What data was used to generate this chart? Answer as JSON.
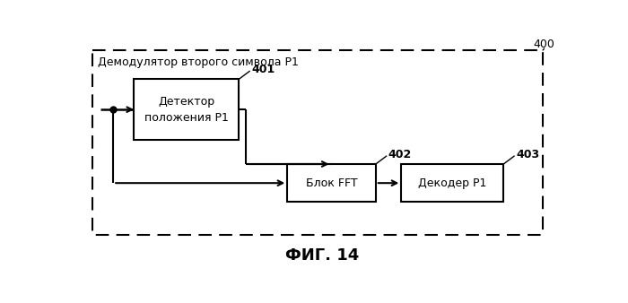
{
  "title": "ФИГ. 14",
  "outer_label": "Демодулятор второго символа Р1",
  "outer_label_400": "400",
  "box1_label": "Детектор\nположения Р1",
  "box1_id": "401",
  "box2_label": "Блок FFT",
  "box2_id": "402",
  "box3_label": "Декодер Р1",
  "box3_id": "403",
  "bg_color": "#ffffff",
  "box_facecolor": "#ffffff",
  "box_edgecolor": "#000000",
  "outer_edgecolor": "#000000",
  "text_color": "#000000",
  "fig_width": 7.0,
  "fig_height": 3.38,
  "dpi": 100
}
